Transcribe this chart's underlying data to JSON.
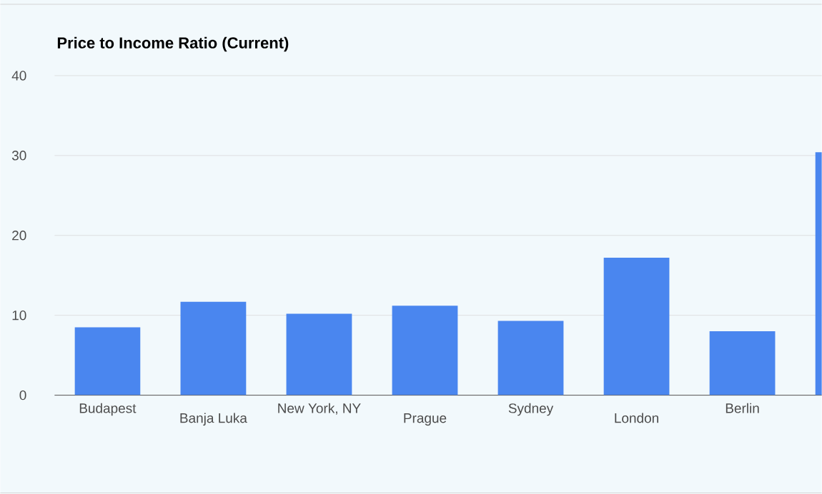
{
  "chart_data": {
    "type": "bar",
    "title": "Price to Income Ratio (Current)",
    "categories": [
      "Budapest",
      "Banja Luka",
      "New York, NY",
      "Prague",
      "Sydney",
      "London",
      "Berlin",
      null
    ],
    "values": [
      8.5,
      11.7,
      10.2,
      11.2,
      9.3,
      17.2,
      8.0,
      30.4
    ],
    "color": "#4a86ef",
    "ylim": [
      0,
      40
    ],
    "yticks": [
      0,
      10,
      20,
      30,
      40
    ],
    "grid": "y",
    "legend": false
  }
}
